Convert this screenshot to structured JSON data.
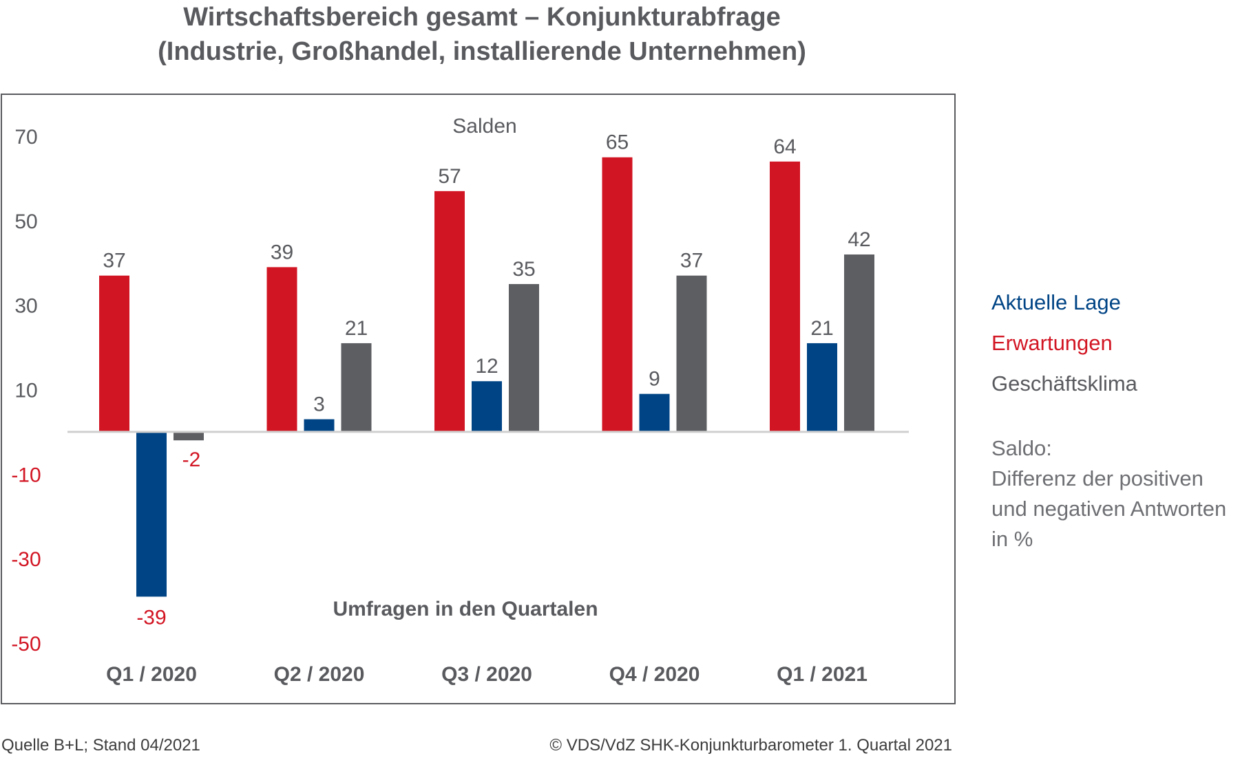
{
  "title_line1": "Wirtschaftsbereich gesamt – Konjunkturabfrage",
  "title_line2": "(Industrie, Großhandel, installierende Unternehmen)",
  "colors": {
    "aktuelle_lage": "#004485",
    "erwartungen": "#d21523",
    "geschaeftsklima": "#5d5e62",
    "negative_label": "#d21523",
    "axis": "#595a5e",
    "frame": "#595a5e"
  },
  "chart_data": {
    "type": "bar",
    "subtitle": "Salden",
    "xlabel": "Umfragen in den Quartalen",
    "categories": [
      "Q1 / 2020",
      "Q2 / 2020",
      "Q3 / 2020",
      "Q4 / 2020",
      "Q1 / 2021"
    ],
    "series": [
      {
        "name": "Erwartungen",
        "values": [
          37,
          39,
          57,
          65,
          64
        ]
      },
      {
        "name": "Aktuelle Lage",
        "values": [
          -39,
          3,
          12,
          9,
          21
        ]
      },
      {
        "name": "Geschäftsklima",
        "values": [
          -2,
          21,
          35,
          37,
          42
        ]
      }
    ],
    "yticks": [
      "70",
      "50",
      "30",
      "10",
      "-10",
      "-30",
      "-50"
    ],
    "ytick_values": [
      70,
      50,
      30,
      10,
      -10,
      -30,
      -50
    ],
    "ylim": [
      -50,
      70
    ],
    "grid": false,
    "legend_position": "right"
  },
  "legend": {
    "aktuelle_lage": "Aktuelle Lage",
    "erwartungen": "Erwartungen",
    "geschaeftsklima": "Geschäftsklima"
  },
  "note": {
    "line1": "Saldo:",
    "line2": "Differenz der positiven",
    "line3": "und negativen Antworten",
    "line4": "in %"
  },
  "footer": {
    "source": "Quelle B+L; Stand 04/2021",
    "copyright": "© VDS/VdZ SHK-Konjunkturbarometer 1. Quartal 2021"
  }
}
